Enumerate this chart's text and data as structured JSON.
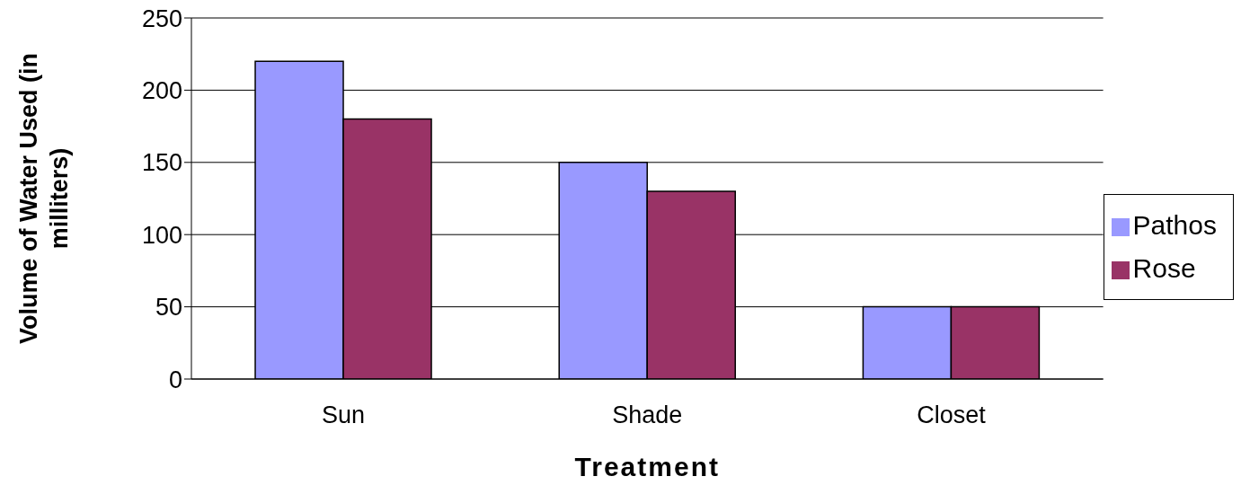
{
  "chart_data": {
    "type": "bar",
    "xlabel": "Treatment",
    "ylabel": "Volume of Water Used (in milliters)",
    "categories": [
      "Sun",
      "Shade",
      "Closet"
    ],
    "series": [
      {
        "name": "Pathos",
        "color": "#9999ff",
        "values": [
          220,
          150,
          50
        ]
      },
      {
        "name": "Rose",
        "color": "#993366",
        "values": [
          180,
          130,
          50
        ]
      }
    ],
    "ylim": [
      0,
      250
    ],
    "yticks": [
      0,
      50,
      100,
      150,
      200,
      250
    ],
    "grid": "y",
    "legend": "right"
  }
}
